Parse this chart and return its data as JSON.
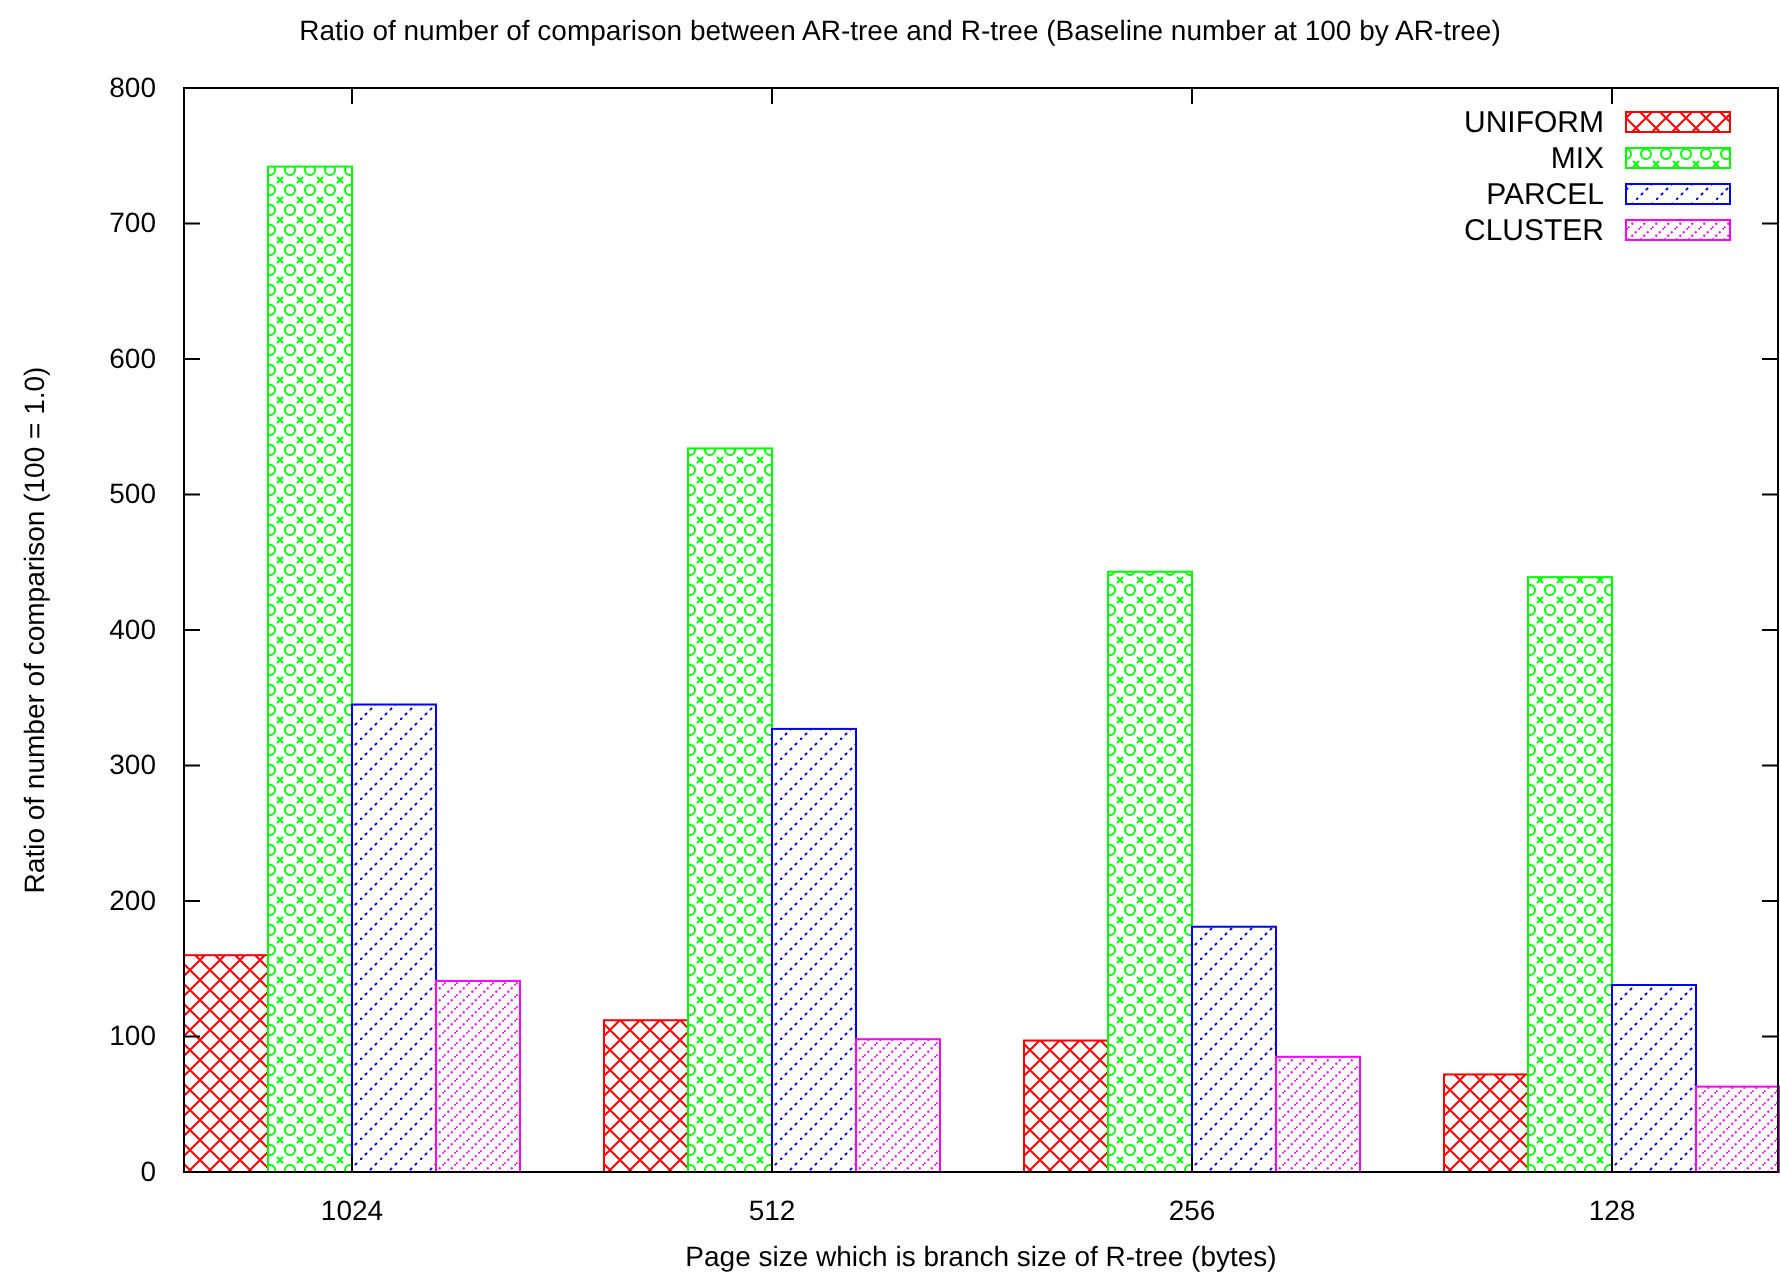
{
  "chart_data": {
    "type": "bar",
    "title": "Ratio of number of comparison between AR-tree and R-tree (Baseline number at 100 by AR-tree)",
    "xlabel": "Page size which is branch size of R-tree (bytes)",
    "ylabel": "Ratio of number of comparison (100 = 1.0)",
    "categories": [
      "1024",
      "512",
      "256",
      "128"
    ],
    "series": [
      {
        "name": "UNIFORM",
        "color": "#ff0000",
        "values": [
          160,
          112,
          97,
          72
        ]
      },
      {
        "name": "MIX",
        "color": "#00ff00",
        "values": [
          742,
          534,
          443,
          439
        ]
      },
      {
        "name": "PARCEL",
        "color": "#0000ff",
        "values": [
          345,
          327,
          181,
          138
        ]
      },
      {
        "name": "CLUSTER",
        "color": "#ff00ff",
        "values": [
          141,
          98,
          85,
          63
        ]
      }
    ],
    "ylim": [
      0,
      800
    ],
    "yticks": [
      0,
      100,
      200,
      300,
      400,
      500,
      600,
      700,
      800
    ],
    "legend": "top right",
    "grid": false
  }
}
